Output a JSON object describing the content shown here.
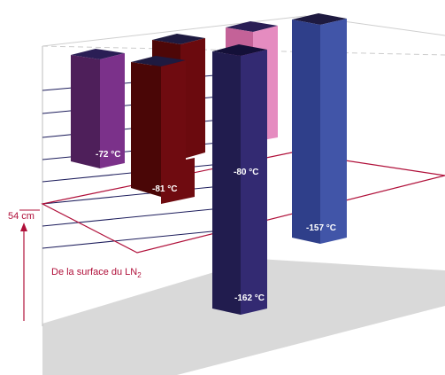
{
  "height_marker": {
    "value_label": "54 cm"
  },
  "reference_label": {
    "text": "De la surface du LN",
    "subscript": "2"
  },
  "columns": [
    {
      "id": "purple",
      "temp_label": "-72 °C",
      "color": "#6b2a74"
    },
    {
      "id": "darkred-back",
      "temp_label": "",
      "color": "#5e0a0a"
    },
    {
      "id": "darkred",
      "temp_label": "-81 °C",
      "color": "#6a0a0e"
    },
    {
      "id": "pink",
      "temp_label": "",
      "color": "#e07ab5"
    },
    {
      "id": "navy",
      "temp_label": "-80 °C",
      "color": "#2d2565"
    },
    {
      "id": "navy-bottom",
      "temp_label": "-162 °C",
      "color": "#2d2565"
    },
    {
      "id": "blue",
      "temp_label": "-157 °C",
      "color": "#3b4f9e"
    }
  ],
  "colors": {
    "accent": "#b0103a",
    "grid": "#1d1d5c",
    "floor": "#d9d9d9"
  }
}
